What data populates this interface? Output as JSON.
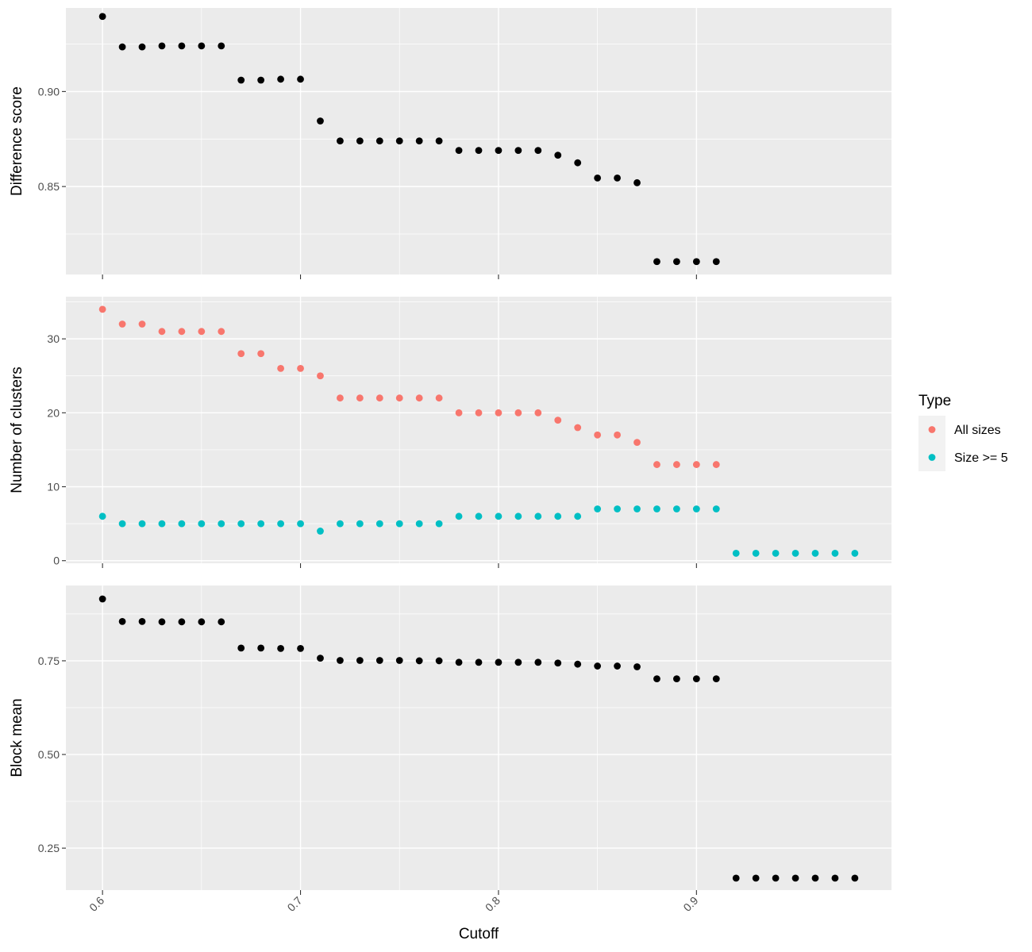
{
  "chart_data": {
    "type": "scatter",
    "x_label": "Cutoff",
    "x_ticks": [
      0.6,
      0.7,
      0.8,
      0.9
    ],
    "x_tick_labels": [
      "0.6",
      "0.7",
      "0.8",
      "0.9"
    ],
    "x_range": [
      0.5815,
      0.9985
    ],
    "grid": true,
    "legend": {
      "title": "Type",
      "placement": "right",
      "entries": [
        {
          "label": "All sizes",
          "color": "#F8766D"
        },
        {
          "label": "Size >= 5",
          "color": "#00BFC4"
        }
      ]
    },
    "panels": [
      {
        "id": "difference",
        "ylabel": "Difference score",
        "y_ticks": [
          0.85,
          0.9
        ],
        "y_tick_labels": [
          "0.85",
          "0.90"
        ],
        "y_range": [
          0.8037,
          0.944
        ],
        "series": [
          {
            "color": "#000000",
            "points": [
              [
                0.6,
                0.9395
              ],
              [
                0.61,
                0.9235
              ],
              [
                0.62,
                0.9235
              ],
              [
                0.63,
                0.924
              ],
              [
                0.64,
                0.924
              ],
              [
                0.65,
                0.924
              ],
              [
                0.66,
                0.924
              ],
              [
                0.67,
                0.906
              ],
              [
                0.68,
                0.906
              ],
              [
                0.69,
                0.9065
              ],
              [
                0.7,
                0.9065
              ],
              [
                0.71,
                0.8845
              ],
              [
                0.72,
                0.874
              ],
              [
                0.73,
                0.874
              ],
              [
                0.74,
                0.874
              ],
              [
                0.75,
                0.874
              ],
              [
                0.76,
                0.874
              ],
              [
                0.77,
                0.874
              ],
              [
                0.78,
                0.869
              ],
              [
                0.79,
                0.869
              ],
              [
                0.8,
                0.869
              ],
              [
                0.81,
                0.869
              ],
              [
                0.82,
                0.869
              ],
              [
                0.83,
                0.8665
              ],
              [
                0.84,
                0.8625
              ],
              [
                0.85,
                0.8545
              ],
              [
                0.86,
                0.8545
              ],
              [
                0.87,
                0.852
              ],
              [
                0.88,
                0.8105
              ],
              [
                0.89,
                0.8105
              ],
              [
                0.9,
                0.8105
              ],
              [
                0.91,
                0.8105
              ]
            ]
          }
        ]
      },
      {
        "id": "clusters",
        "ylabel": "Number of clusters",
        "y_ticks": [
          0,
          10,
          20,
          30
        ],
        "y_tick_labels": [
          "0",
          "10",
          "20",
          "30"
        ],
        "y_range": [
          -0.35,
          35.7
        ],
        "series": [
          {
            "name": "All sizes",
            "color": "#F8766D",
            "points": [
              [
                0.6,
                34
              ],
              [
                0.61,
                32
              ],
              [
                0.62,
                32
              ],
              [
                0.63,
                31
              ],
              [
                0.64,
                31
              ],
              [
                0.65,
                31
              ],
              [
                0.66,
                31
              ],
              [
                0.67,
                28
              ],
              [
                0.68,
                28
              ],
              [
                0.69,
                26
              ],
              [
                0.7,
                26
              ],
              [
                0.71,
                25
              ],
              [
                0.72,
                22
              ],
              [
                0.73,
                22
              ],
              [
                0.74,
                22
              ],
              [
                0.75,
                22
              ],
              [
                0.76,
                22
              ],
              [
                0.77,
                22
              ],
              [
                0.78,
                20
              ],
              [
                0.79,
                20
              ],
              [
                0.8,
                20
              ],
              [
                0.81,
                20
              ],
              [
                0.82,
                20
              ],
              [
                0.83,
                19
              ],
              [
                0.84,
                18
              ],
              [
                0.85,
                17
              ],
              [
                0.86,
                17
              ],
              [
                0.87,
                16
              ],
              [
                0.88,
                13
              ],
              [
                0.89,
                13
              ],
              [
                0.9,
                13
              ],
              [
                0.91,
                13
              ]
            ]
          },
          {
            "name": "Size >= 5",
            "color": "#00BFC4",
            "points": [
              [
                0.6,
                6
              ],
              [
                0.61,
                5
              ],
              [
                0.62,
                5
              ],
              [
                0.63,
                5
              ],
              [
                0.64,
                5
              ],
              [
                0.65,
                5
              ],
              [
                0.66,
                5
              ],
              [
                0.67,
                5
              ],
              [
                0.68,
                5
              ],
              [
                0.69,
                5
              ],
              [
                0.7,
                5
              ],
              [
                0.71,
                4
              ],
              [
                0.72,
                5
              ],
              [
                0.73,
                5
              ],
              [
                0.74,
                5
              ],
              [
                0.75,
                5
              ],
              [
                0.76,
                5
              ],
              [
                0.77,
                5
              ],
              [
                0.78,
                6
              ],
              [
                0.79,
                6
              ],
              [
                0.8,
                6
              ],
              [
                0.81,
                6
              ],
              [
                0.82,
                6
              ],
              [
                0.83,
                6
              ],
              [
                0.84,
                6
              ],
              [
                0.85,
                7
              ],
              [
                0.86,
                7
              ],
              [
                0.87,
                7
              ],
              [
                0.88,
                7
              ],
              [
                0.89,
                7
              ],
              [
                0.9,
                7
              ],
              [
                0.91,
                7
              ],
              [
                0.92,
                1
              ],
              [
                0.93,
                1
              ],
              [
                0.94,
                1
              ],
              [
                0.95,
                1
              ],
              [
                0.96,
                1
              ],
              [
                0.97,
                1
              ],
              [
                0.98,
                1
              ]
            ]
          }
        ]
      },
      {
        "id": "block",
        "ylabel": "Block mean",
        "y_ticks": [
          0.25,
          0.5,
          0.75
        ],
        "y_tick_labels": [
          "0.25",
          "0.50",
          "0.75"
        ],
        "y_range": [
          0.138,
          0.951
        ],
        "series": [
          {
            "color": "#000000",
            "points": [
              [
                0.6,
                0.915
              ],
              [
                0.61,
                0.855
              ],
              [
                0.62,
                0.855
              ],
              [
                0.63,
                0.854
              ],
              [
                0.64,
                0.854
              ],
              [
                0.65,
                0.854
              ],
              [
                0.66,
                0.854
              ],
              [
                0.67,
                0.784
              ],
              [
                0.68,
                0.784
              ],
              [
                0.69,
                0.783
              ],
              [
                0.7,
                0.783
              ],
              [
                0.71,
                0.757
              ],
              [
                0.72,
                0.751
              ],
              [
                0.73,
                0.751
              ],
              [
                0.74,
                0.751
              ],
              [
                0.75,
                0.751
              ],
              [
                0.76,
                0.75
              ],
              [
                0.77,
                0.75
              ],
              [
                0.78,
                0.746
              ],
              [
                0.79,
                0.746
              ],
              [
                0.8,
                0.746
              ],
              [
                0.81,
                0.746
              ],
              [
                0.82,
                0.746
              ],
              [
                0.83,
                0.744
              ],
              [
                0.84,
                0.741
              ],
              [
                0.85,
                0.736
              ],
              [
                0.86,
                0.736
              ],
              [
                0.87,
                0.734
              ],
              [
                0.88,
                0.702
              ],
              [
                0.89,
                0.702
              ],
              [
                0.9,
                0.702
              ],
              [
                0.91,
                0.702
              ],
              [
                0.92,
                0.17
              ],
              [
                0.93,
                0.17
              ],
              [
                0.94,
                0.17
              ],
              [
                0.95,
                0.17
              ],
              [
                0.96,
                0.17
              ],
              [
                0.97,
                0.17
              ],
              [
                0.98,
                0.17
              ]
            ]
          }
        ]
      }
    ]
  }
}
